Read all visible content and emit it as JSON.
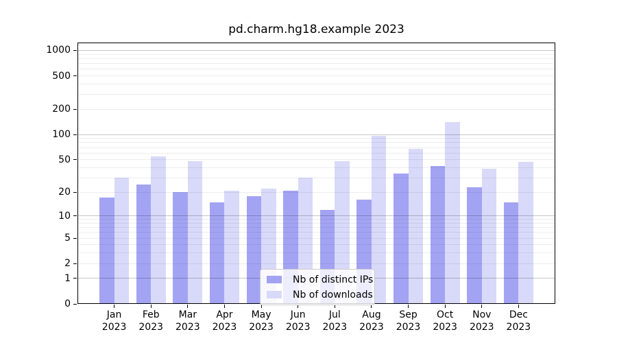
{
  "figure": {
    "title": "pd.charm.hg18.example 2023"
  },
  "colors": {
    "bar_distinct_ips": "#a3a3f3",
    "bar_downloads": "#d9d9f9",
    "major_grid": "rgba(0,0,0,0.22)",
    "minor_grid": "rgba(0,0,0,0.07)",
    "spine": "#000000",
    "legend_border": "#cccccc",
    "legend_background": "rgba(255,255,255,0.8)",
    "text": "#000000"
  },
  "chart_data": {
    "type": "bar",
    "title": "pd.charm.hg18.example 2023",
    "xlabel": "",
    "ylabel": "",
    "categories": [
      "Jan",
      "Feb",
      "Mar",
      "Apr",
      "May",
      "Jun",
      "Jul",
      "Aug",
      "Sep",
      "Oct",
      "Nov",
      "Dec"
    ],
    "category_year": "2023",
    "series": [
      {
        "name": "Nb of distinct IPs",
        "color": "#a3a3f3",
        "values": [
          17,
          25,
          20,
          15,
          18,
          21,
          12,
          16,
          34,
          42,
          23,
          15
        ]
      },
      {
        "name": "Nb of downloads",
        "color": "#d9d9f9",
        "values": [
          30,
          55,
          48,
          21,
          22,
          30,
          48,
          97,
          67,
          140,
          39,
          47
        ]
      }
    ],
    "yscale": "log1p",
    "yticks": [
      0,
      1,
      2,
      5,
      10,
      20,
      50,
      100,
      200,
      500,
      1000
    ],
    "minor_grid_values": [
      2,
      3,
      4,
      5,
      6,
      7,
      8,
      9,
      20,
      30,
      40,
      50,
      60,
      70,
      80,
      90,
      200,
      300,
      400,
      500,
      600,
      700,
      800,
      900
    ],
    "major_grid_values": [
      1,
      10,
      100,
      1000
    ],
    "ylim": [
      0,
      1240
    ],
    "grid": true,
    "legend_position": "lower center"
  }
}
